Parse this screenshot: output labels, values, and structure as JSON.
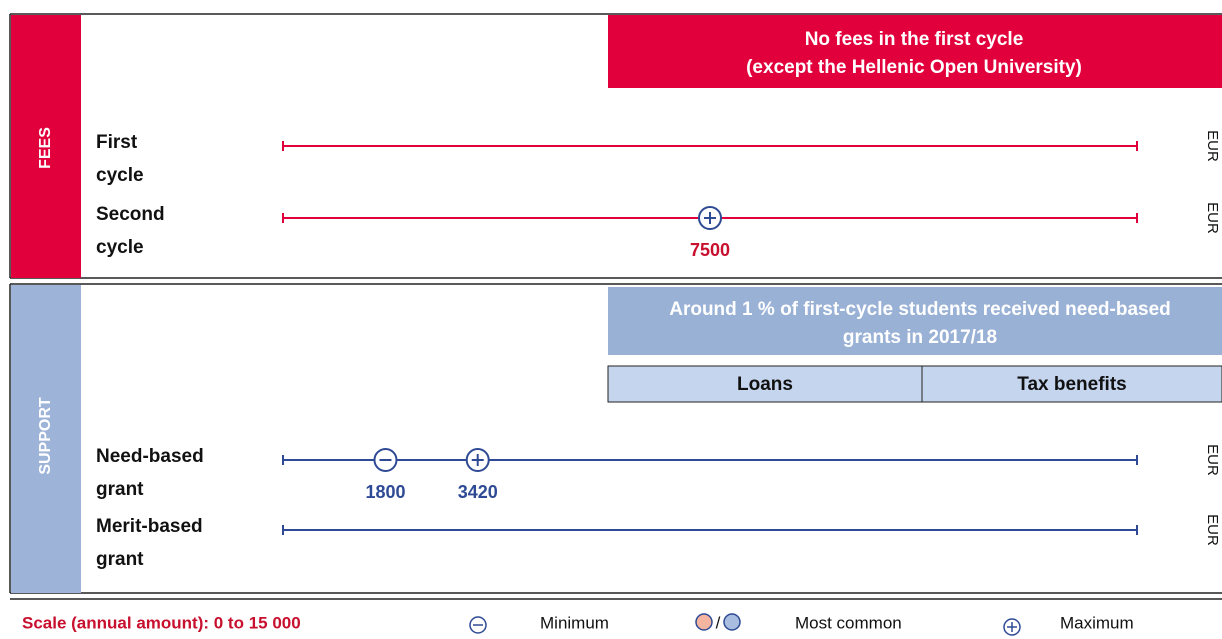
{
  "scale": {
    "label": "Scale (annual amount): 0 to 15 000",
    "min": 0,
    "max": 15000
  },
  "unit": "EUR",
  "fees": {
    "label": "FEES",
    "banner": [
      "No fees in the first cycle",
      "(except the Hellenic Open University)"
    ],
    "rows": [
      {
        "label": [
          "First",
          "cycle"
        ],
        "markers": []
      },
      {
        "label": [
          "Second",
          "cycle"
        ],
        "markers": [
          {
            "kind": "maximum",
            "value": 7500
          }
        ]
      }
    ]
  },
  "support": {
    "label": "SUPPORT",
    "banner": [
      "Around 1 % of first-cycle students received need-based",
      "grants in 2017/18"
    ],
    "columns": [
      "Loans",
      "Tax benefits"
    ],
    "rows": [
      {
        "label": [
          "Need-based",
          "grant"
        ],
        "markers": [
          {
            "kind": "minimum",
            "value": 1800
          },
          {
            "kind": "maximum",
            "value": 3420
          }
        ]
      },
      {
        "label": [
          "Merit-based",
          "grant"
        ],
        "markers": []
      }
    ]
  },
  "legend": {
    "minimum": "Minimum",
    "separator": "/",
    "most_common": "Most common",
    "maximum": "Maximum"
  }
}
